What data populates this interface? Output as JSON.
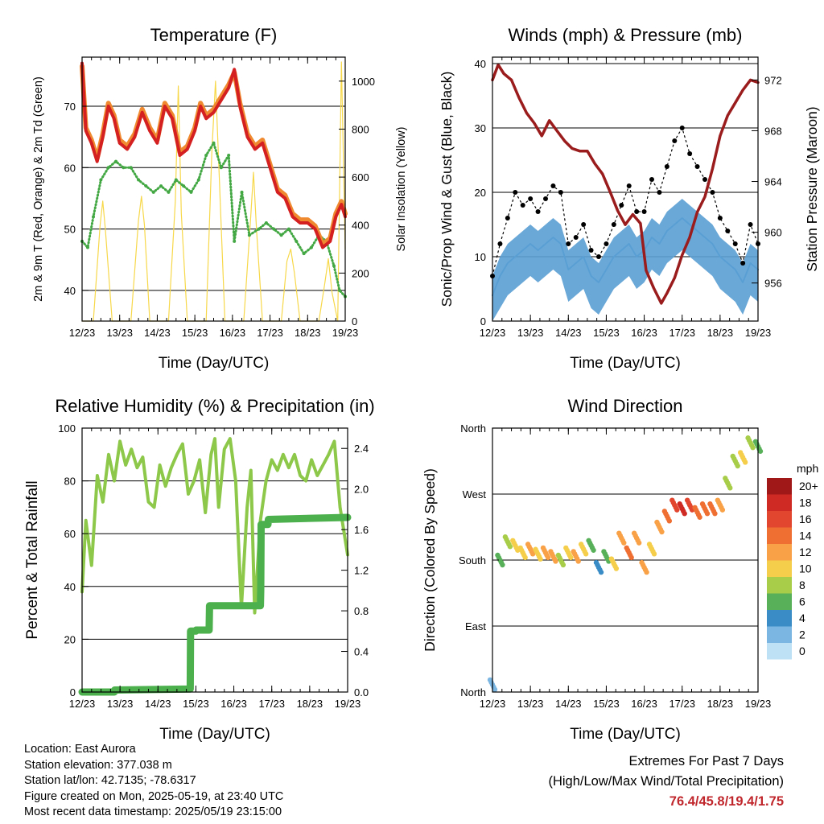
{
  "colors": {
    "temp_2m": "#d42020",
    "temp_9m": "#f08a30",
    "dewpoint": "#43a843",
    "solar": "#f7d84a",
    "wind": "#5a9fd4",
    "gust": "#000000",
    "pressure": "#9b1c1c",
    "rh": "#8ec84a",
    "precip": "#4cb04c",
    "extremes": "#c0272d"
  },
  "x_ticks": [
    "12/23",
    "13/23",
    "14/23",
    "15/23",
    "16/23",
    "17/23",
    "18/23",
    "19/23"
  ],
  "x_label": "Time (Day/UTC)",
  "chart_data": [
    {
      "id": "temperature",
      "type": "line",
      "title": "Temperature (F)",
      "ylabel": "2m & 9m T (Red, Orange) & 2m Td (Green)",
      "ylabel2": "Solar Insolation (Yellow)",
      "ylim": [
        35,
        78
      ],
      "y_ticks": [
        40,
        50,
        60,
        70
      ],
      "ylim2": [
        0,
        1100
      ],
      "y2_ticks": [
        0,
        200,
        400,
        600,
        800,
        1000
      ],
      "xlim": [
        12,
        19
      ],
      "grid": true,
      "series": [
        {
          "name": "2m T",
          "x": [
            12,
            12.1,
            12.25,
            12.4,
            12.55,
            12.7,
            12.85,
            13,
            13.2,
            13.4,
            13.6,
            13.8,
            14,
            14.2,
            14.4,
            14.6,
            14.8,
            15,
            15.15,
            15.3,
            15.5,
            15.7,
            15.9,
            16.05,
            16.2,
            16.4,
            16.6,
            16.8,
            17,
            17.2,
            17.4,
            17.6,
            17.8,
            18,
            18.2,
            18.4,
            18.6,
            18.75,
            18.9,
            19
          ],
          "y": [
            77,
            66,
            64,
            61,
            65,
            70,
            68,
            64,
            63,
            65,
            69,
            66,
            64,
            70,
            68,
            62,
            63,
            66,
            70,
            68,
            69,
            71,
            73,
            76,
            70,
            65,
            63,
            64,
            60,
            56,
            55,
            52,
            51,
            51,
            50,
            47,
            48,
            52,
            54,
            52
          ]
        },
        {
          "name": "9m T",
          "x": [
            12,
            12.1,
            12.25,
            12.4,
            12.55,
            12.7,
            12.85,
            13,
            13.2,
            13.4,
            13.6,
            13.8,
            14,
            14.2,
            14.4,
            14.6,
            14.8,
            15,
            15.15,
            15.3,
            15.5,
            15.7,
            15.9,
            16.05,
            16.2,
            16.4,
            16.6,
            16.8,
            17,
            17.2,
            17.4,
            17.6,
            17.8,
            18,
            18.2,
            18.4,
            18.6,
            18.75,
            18.9,
            19
          ],
          "y": [
            76.5,
            66.5,
            64.5,
            61.5,
            65.5,
            70.5,
            68.5,
            64.5,
            63.5,
            65.5,
            69.5,
            66.5,
            64.5,
            70.5,
            68.5,
            62.5,
            63.5,
            66.5,
            70.5,
            68.5,
            69.5,
            71.5,
            73.5,
            75.5,
            70.5,
            65.5,
            63.5,
            64.5,
            60.5,
            56.5,
            55.5,
            52.5,
            51.5,
            51.5,
            50.5,
            47.5,
            48.5,
            52.5,
            54.5,
            52.5
          ]
        },
        {
          "name": "2m Td",
          "x": [
            12,
            12.15,
            12.3,
            12.5,
            12.7,
            12.9,
            13.1,
            13.3,
            13.5,
            13.7,
            13.9,
            14.1,
            14.3,
            14.5,
            14.7,
            14.9,
            15.1,
            15.3,
            15.5,
            15.7,
            15.9,
            16.05,
            16.25,
            16.45,
            16.7,
            16.9,
            17.1,
            17.3,
            17.5,
            17.7,
            17.9,
            18.1,
            18.3,
            18.5,
            18.7,
            18.85,
            19
          ],
          "y": [
            48,
            47,
            52,
            58,
            60,
            61,
            60,
            60,
            58,
            57,
            56,
            57,
            56,
            58,
            57,
            56,
            58,
            62,
            64,
            60,
            62,
            48,
            56,
            49,
            50,
            51,
            50,
            49,
            50,
            48,
            46,
            47,
            49,
            48,
            44,
            40,
            39
          ]
        },
        {
          "name": "Solar",
          "axis": "y2",
          "x": [
            12,
            12.3,
            12.48,
            12.55,
            12.62,
            12.8,
            13.3,
            13.5,
            13.58,
            13.66,
            13.8,
            14.3,
            14.48,
            14.56,
            14.64,
            14.8,
            15.3,
            15.45,
            15.55,
            15.65,
            15.8,
            16.3,
            16.48,
            16.56,
            16.64,
            16.8,
            17.3,
            17.45,
            17.55,
            17.65,
            17.8,
            18.3,
            18.45,
            18.55,
            18.65,
            18.8,
            18.9,
            19
          ],
          "y": [
            0,
            0,
            400,
            500,
            380,
            0,
            0,
            420,
            520,
            400,
            0,
            0,
            500,
            980,
            450,
            0,
            0,
            700,
            1000,
            600,
            0,
            0,
            420,
            620,
            380,
            0,
            0,
            250,
            300,
            200,
            0,
            0,
            150,
            260,
            120,
            0,
            1080,
            300
          ]
        }
      ]
    },
    {
      "id": "winds",
      "type": "line",
      "title": "Winds (mph) & Pressure (mb)",
      "ylabel": "Sonic/Prop Wind & Gust (Blue, Black)",
      "ylabel2": "Station Pressure (Maroon)",
      "ylim": [
        0,
        41
      ],
      "y_ticks": [
        0,
        10,
        20,
        30,
        40
      ],
      "ylim2": [
        953.0,
        973.8
      ],
      "y2_ticks": [
        956,
        960,
        964,
        968,
        972
      ],
      "xlim": [
        12,
        19
      ],
      "grid": true,
      "series": [
        {
          "name": "Sonic/Prop Wind",
          "x": [
            12,
            12.2,
            12.4,
            12.6,
            12.8,
            13,
            13.2,
            13.4,
            13.6,
            13.8,
            14,
            14.2,
            14.4,
            14.6,
            14.8,
            15,
            15.2,
            15.4,
            15.6,
            15.8,
            16,
            16.2,
            16.4,
            16.6,
            16.8,
            17,
            17.2,
            17.4,
            17.6,
            17.8,
            18,
            18.2,
            18.4,
            18.6,
            18.8,
            19
          ],
          "y": [
            4,
            7,
            9,
            10,
            11,
            12,
            11,
            12,
            13,
            12,
            8,
            9,
            10,
            7,
            6,
            8,
            10,
            11,
            12,
            10,
            11,
            13,
            12,
            14,
            15,
            16,
            15,
            14,
            13,
            12,
            10,
            9,
            8,
            6,
            9,
            8
          ]
        },
        {
          "name": "Gust",
          "x": [
            12,
            12.2,
            12.4,
            12.6,
            12.8,
            13,
            13.2,
            13.4,
            13.6,
            13.8,
            14,
            14.2,
            14.4,
            14.6,
            14.8,
            15,
            15.2,
            15.4,
            15.6,
            15.8,
            16,
            16.2,
            16.4,
            16.6,
            16.8,
            17,
            17.2,
            17.4,
            17.6,
            17.8,
            18,
            18.2,
            18.4,
            18.6,
            18.8,
            19
          ],
          "y": [
            7,
            12,
            16,
            20,
            18,
            19,
            17,
            19,
            21,
            20,
            12,
            13,
            15,
            11,
            10,
            12,
            15,
            18,
            21,
            17,
            17,
            22,
            20,
            24,
            28,
            30,
            26,
            24,
            22,
            20,
            16,
            14,
            12,
            9,
            15,
            12
          ]
        },
        {
          "name": "Station Pressure",
          "axis": "y2",
          "x": [
            12,
            12.15,
            12.3,
            12.5,
            12.7,
            12.9,
            13.1,
            13.3,
            13.5,
            13.7,
            13.9,
            14.1,
            14.3,
            14.5,
            14.7,
            14.9,
            15.1,
            15.3,
            15.5,
            15.7,
            15.9,
            16.05,
            16.25,
            16.45,
            16.6,
            16.8,
            17,
            17.2,
            17.4,
            17.6,
            17.8,
            18,
            18.2,
            18.4,
            18.6,
            18.8,
            19
          ],
          "y": [
            972.0,
            973.2,
            972.5,
            972.0,
            970.6,
            969.4,
            968.6,
            967.6,
            968.8,
            968.0,
            967.2,
            966.6,
            966.4,
            966.4,
            965.4,
            964.6,
            963.2,
            961.7,
            960.6,
            961.4,
            960.7,
            957.0,
            955.6,
            954.4,
            955.2,
            956.4,
            958.2,
            959.6,
            961.6,
            962.8,
            965.0,
            967.6,
            969.2,
            970.2,
            971.2,
            972.0,
            971.8
          ]
        }
      ]
    },
    {
      "id": "humidity",
      "type": "line",
      "title": "Relative Humidity (%) & Precipitation (in)",
      "ylabel": "Percent & Total Rainfall",
      "ylim": [
        0,
        100
      ],
      "y_ticks": [
        0,
        20,
        40,
        60,
        80,
        100
      ],
      "ylim2": [
        0,
        2.6
      ],
      "y2_ticks": [
        "0.0",
        "0.4",
        "0.8",
        "1.2",
        "1.6",
        "2.0",
        "2.4"
      ],
      "xlim": [
        12,
        19
      ],
      "grid": true,
      "series": [
        {
          "name": "RH",
          "x": [
            12,
            12.1,
            12.25,
            12.4,
            12.55,
            12.7,
            12.85,
            13,
            13.15,
            13.3,
            13.45,
            13.6,
            13.75,
            13.9,
            14.05,
            14.2,
            14.35,
            14.5,
            14.65,
            14.8,
            14.95,
            15.1,
            15.25,
            15.4,
            15.5,
            15.6,
            15.75,
            15.9,
            16.05,
            16.2,
            16.35,
            16.45,
            16.55,
            16.7,
            16.85,
            17,
            17.15,
            17.3,
            17.45,
            17.6,
            17.75,
            17.9,
            18.05,
            18.2,
            18.35,
            18.5,
            18.65,
            18.8,
            19
          ],
          "y": [
            38,
            65,
            48,
            82,
            72,
            90,
            80,
            95,
            86,
            92,
            85,
            89,
            72,
            70,
            86,
            78,
            85,
            90,
            94,
            75,
            80,
            88,
            68,
            90,
            96,
            70,
            92,
            96,
            80,
            32,
            70,
            84,
            30,
            65,
            80,
            88,
            84,
            90,
            85,
            90,
            82,
            80,
            88,
            82,
            86,
            90,
            95,
            70,
            52
          ]
        },
        {
          "name": "Total Rainfall",
          "axis": "y2",
          "x": [
            12,
            12.85,
            12.86,
            14.85,
            14.86,
            15.0,
            15.01,
            15.35,
            15.36,
            16.7,
            16.71,
            16.72,
            16.9,
            16.91,
            19
          ],
          "y": [
            0,
            0,
            0.02,
            0.03,
            0.6,
            0.6,
            0.61,
            0.61,
            0.85,
            0.85,
            1.0,
            1.65,
            1.65,
            1.7,
            1.72
          ]
        }
      ]
    },
    {
      "id": "wind_direction",
      "type": "scatter",
      "title": "Wind Direction",
      "ylabel": "Direction (Colored By Speed)",
      "y_ticks": [
        "North",
        "East",
        "South",
        "West",
        "North"
      ],
      "ylim": [
        0,
        360
      ],
      "xlim": [
        12,
        19
      ],
      "grid": true,
      "colorbar": {
        "title": "mph",
        "labels": [
          "20+",
          "18",
          "16",
          "14",
          "12",
          "10",
          "8",
          "6",
          "4",
          "2",
          "0"
        ],
        "colors": [
          "#a01818",
          "#cf2a23",
          "#e2462e",
          "#ef6f33",
          "#f8a146",
          "#f5cf4c",
          "#a7cd49",
          "#58b059",
          "#3a8cc6",
          "#7bb6e2",
          "#bfe1f5"
        ]
      },
      "x": [
        12,
        12.2,
        12.4,
        12.6,
        12.8,
        13,
        13.2,
        13.4,
        13.6,
        13.8,
        14,
        14.2,
        14.4,
        14.6,
        14.8,
        15,
        15.2,
        15.4,
        15.6,
        15.8,
        16,
        16.2,
        16.4,
        16.6,
        16.8,
        17,
        17.2,
        17.4,
        17.6,
        17.8,
        18,
        18.2,
        18.4,
        18.6,
        18.8,
        19
      ],
      "y": [
        10,
        180,
        205,
        200,
        190,
        195,
        188,
        190,
        185,
        180,
        190,
        185,
        195,
        200,
        170,
        185,
        175,
        210,
        190,
        210,
        170,
        195,
        225,
        240,
        255,
        250,
        255,
        245,
        250,
        250,
        255,
        285,
        315,
        320,
        340,
        335
      ],
      "speed": [
        2,
        6,
        8,
        10,
        9,
        12,
        10,
        11,
        12,
        8,
        10,
        11,
        9,
        6,
        4,
        6,
        10,
        12,
        14,
        12,
        12,
        10,
        12,
        14,
        16,
        17,
        15,
        14,
        14,
        13,
        12,
        8,
        8,
        10,
        8,
        6
      ]
    }
  ],
  "footer": {
    "location": "Location: East Aurora",
    "elevation": "Station elevation: 377.038 m",
    "latlon": "Station lat/lon: 42.7135; -78.6317",
    "created": "Figure created on Mon, 2025-05-19, at 23:40 UTC",
    "latest": "Most recent data timestamp: 2025/05/19 23:15:00",
    "extremes_title": "Extremes For Past 7 Days",
    "extremes_sub": "(High/Low/Max Wind/Total Precipitation)",
    "extremes_values": "76.4/45.8/19.4/1.75"
  }
}
